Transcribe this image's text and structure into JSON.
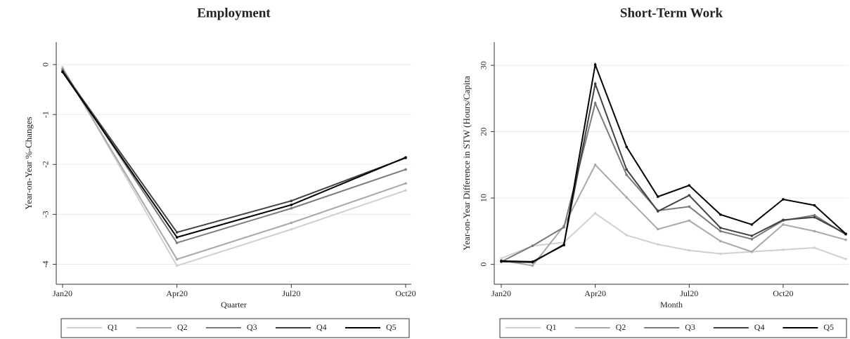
{
  "chart_data": [
    {
      "type": "line",
      "title": "Employment",
      "x_label": "Quarter",
      "y_label": "Year-on-Year %-Changes",
      "categories": [
        "Jan20",
        "Apr20",
        "Jul20",
        "Oct20"
      ],
      "series": [
        {
          "name": "Q1",
          "color": "#d0d0d0",
          "values": [
            -0.05,
            -4.03,
            -3.3,
            -2.52
          ]
        },
        {
          "name": "Q2",
          "color": "#a8a8a8",
          "values": [
            -0.08,
            -3.9,
            -3.17,
            -2.38
          ]
        },
        {
          "name": "Q3",
          "color": "#7a7a7a",
          "values": [
            -0.1,
            -3.57,
            -2.88,
            -2.1
          ]
        },
        {
          "name": "Q4",
          "color": "#404040",
          "values": [
            -0.13,
            -3.36,
            -2.73,
            -1.87
          ]
        },
        {
          "name": "Q5",
          "color": "#000000",
          "values": [
            -0.15,
            -3.46,
            -2.81,
            -1.86
          ]
        }
      ],
      "ylim": [
        -4.4,
        0.45
      ],
      "yticks": [
        0,
        -1,
        -2,
        -3,
        -4
      ],
      "grid": true,
      "legend": "bottom"
    },
    {
      "type": "line",
      "title": "Short-Term Work",
      "x_label": "Month",
      "y_label": "Year-on-Year Difference in STW (Hours/Capita",
      "categories": [
        "Jan20",
        null,
        null,
        "Apr20",
        null,
        null,
        "Jul20",
        null,
        null,
        "Oct20",
        null,
        null
      ],
      "series": [
        {
          "name": "Q1",
          "color": "#d0d0d0",
          "values": [
            0.9,
            2.8,
            3.3,
            7.7,
            4.4,
            3.0,
            2.1,
            1.6,
            1.9,
            2.2,
            2.5,
            0.8
          ]
        },
        {
          "name": "Q2",
          "color": "#a8a8a8",
          "values": [
            0.6,
            -0.2,
            5.8,
            15.0,
            10.1,
            5.3,
            6.6,
            3.5,
            1.9,
            6.0,
            5.0,
            3.7
          ]
        },
        {
          "name": "Q3",
          "color": "#7a7a7a",
          "values": [
            0.4,
            2.8,
            5.6,
            24.3,
            13.5,
            8.1,
            8.7,
            5.0,
            3.8,
            6.6,
            7.4,
            4.5
          ]
        },
        {
          "name": "Q4",
          "color": "#404040",
          "values": [
            0.4,
            0.3,
            3.0,
            27.2,
            14.3,
            8.0,
            10.4,
            5.5,
            4.3,
            6.7,
            7.1,
            4.6
          ]
        },
        {
          "name": "Q5",
          "color": "#000000",
          "values": [
            0.5,
            0.4,
            2.9,
            30.1,
            17.7,
            10.2,
            11.9,
            7.5,
            6.0,
            9.8,
            8.9,
            4.6
          ]
        }
      ],
      "ylim": [
        -3,
        33.5
      ],
      "yticks": [
        0,
        10,
        20,
        30
      ],
      "grid": true,
      "legend": "bottom"
    }
  ]
}
